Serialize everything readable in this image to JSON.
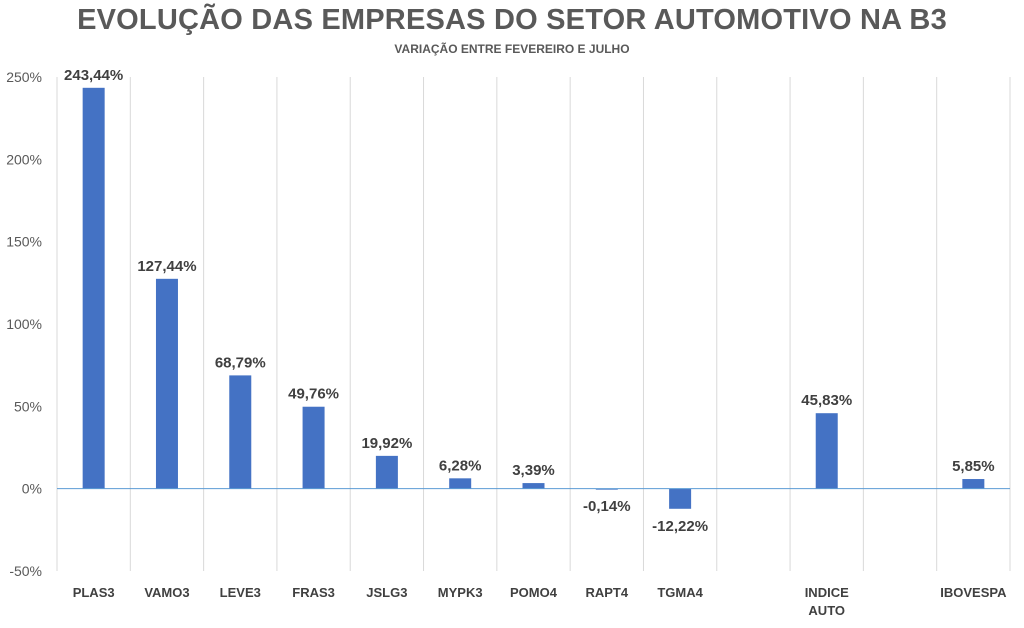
{
  "chart_data": {
    "type": "bar",
    "title": "EVOLUÇÃO DAS EMPRESAS DO SETOR AUTOMOTIVO NA B3",
    "subtitle": "VARIAÇÃO ENTRE FEVEREIRO E JULHO",
    "xlabel": "",
    "ylabel": "",
    "ylim": [
      -50,
      250
    ],
    "yticks": [
      -50,
      0,
      50,
      100,
      150,
      200,
      250
    ],
    "ytick_labels": [
      "-50%",
      "0%",
      "50%",
      "100%",
      "150%",
      "200%",
      "250%"
    ],
    "grid": "vertical",
    "legend": "none",
    "bar_color": "#4472C4",
    "categories": [
      {
        "label": [
          "PLAS3"
        ],
        "value": 243.44,
        "data_label": "243,44%"
      },
      {
        "label": [
          "VAMO3"
        ],
        "value": 127.44,
        "data_label": "127,44%"
      },
      {
        "label": [
          "LEVE3"
        ],
        "value": 68.79,
        "data_label": "68,79%"
      },
      {
        "label": [
          "FRAS3"
        ],
        "value": 49.76,
        "data_label": "49,76%"
      },
      {
        "label": [
          "JSLG3"
        ],
        "value": 19.92,
        "data_label": "19,92%"
      },
      {
        "label": [
          "MYPK3"
        ],
        "value": 6.28,
        "data_label": "6,28%"
      },
      {
        "label": [
          "POMO4"
        ],
        "value": 3.39,
        "data_label": "3,39%"
      },
      {
        "label": [
          "RAPT4"
        ],
        "value": -0.14,
        "data_label": "-0,14%"
      },
      {
        "label": [
          "TGMA4"
        ],
        "value": -12.22,
        "data_label": "-12,22%"
      },
      {
        "label": [
          ""
        ],
        "value": null,
        "data_label": ""
      },
      {
        "label": [
          "INDICE",
          "AUTO"
        ],
        "value": 45.83,
        "data_label": "45,83%"
      },
      {
        "label": [
          ""
        ],
        "value": null,
        "data_label": ""
      },
      {
        "label": [
          "IBOVESPA"
        ],
        "value": 5.85,
        "data_label": "5,85%"
      }
    ]
  }
}
